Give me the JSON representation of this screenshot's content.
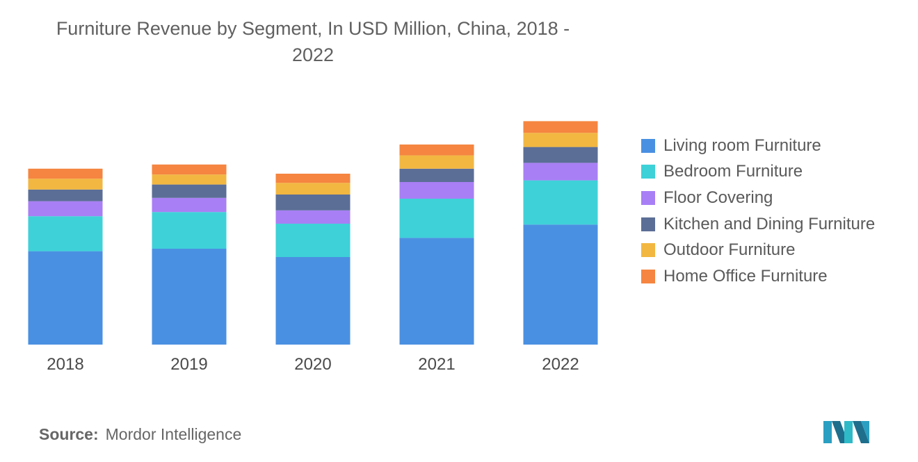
{
  "title_line1": "Furniture Revenue by Segment, In USD Million, China, 2018 -",
  "title_line2": "2022",
  "source_label": "Source:",
  "source_value": "Mordor Intelligence",
  "chart_data": {
    "type": "bar",
    "stacked": true,
    "categories": [
      "2018",
      "2019",
      "2020",
      "2021",
      "2022"
    ],
    "series": [
      {
        "name": "Living room Furniture",
        "color": "#4a90e2",
        "values": [
          112,
          115,
          105,
          128,
          144
        ]
      },
      {
        "name": "Bedroom Furniture",
        "color": "#3ed1d8",
        "values": [
          42,
          44,
          40,
          47,
          53
        ]
      },
      {
        "name": "Floor Covering",
        "color": "#a87ff5",
        "values": [
          18,
          17,
          16,
          20,
          21
        ]
      },
      {
        "name": "Kitchen and Dining Furniture",
        "color": "#5b6e96",
        "values": [
          14,
          16,
          19,
          16,
          19
        ]
      },
      {
        "name": "Outdoor Furniture",
        "color": "#f2b741",
        "values": [
          13,
          12,
          14,
          16,
          17
        ]
      },
      {
        "name": "Home Office Furniture",
        "color": "#f58540",
        "values": [
          12,
          12,
          11,
          13,
          14
        ]
      }
    ],
    "ylim": [
      0,
      280
    ],
    "grid": false,
    "legend": "right",
    "xlabel": "",
    "ylabel": ""
  }
}
